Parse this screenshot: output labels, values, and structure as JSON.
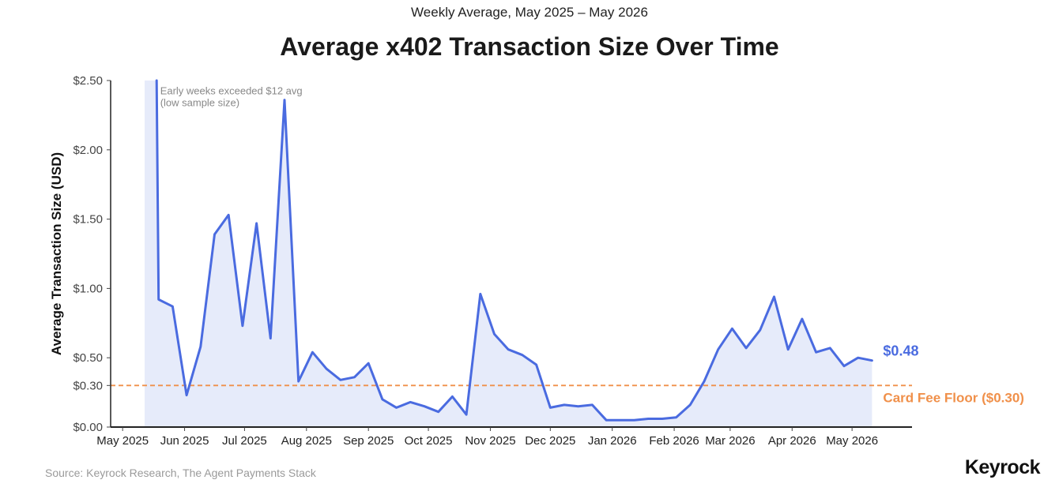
{
  "chart_data": {
    "type": "area",
    "subtitle": "Weekly Average, May 2025 – May 2026",
    "title": "Average x402 Transaction Size Over Time",
    "ylabel": "Average Transaction Size (USD)",
    "xlabel": "",
    "ylim": [
      0,
      2.5
    ],
    "y_ticks": [
      {
        "value": 0.0,
        "label": "$0.00"
      },
      {
        "value": 0.3,
        "label": "$0.30"
      },
      {
        "value": 0.5,
        "label": "$0.50"
      },
      {
        "value": 1.0,
        "label": "$1.00"
      },
      {
        "value": 1.5,
        "label": "$1.50"
      },
      {
        "value": 2.0,
        "label": "$2.00"
      },
      {
        "value": 2.5,
        "label": "$2.50"
      }
    ],
    "x_ticks": [
      {
        "date": "2025-05-01",
        "label": "May 2025"
      },
      {
        "date": "2025-06-01",
        "label": "Jun 2025"
      },
      {
        "date": "2025-07-01",
        "label": "Jul 2025"
      },
      {
        "date": "2025-08-01",
        "label": "Aug 2025"
      },
      {
        "date": "2025-09-01",
        "label": "Sep 2025"
      },
      {
        "date": "2025-10-01",
        "label": "Oct 2025"
      },
      {
        "date": "2025-11-01",
        "label": "Nov 2025"
      },
      {
        "date": "2025-12-01",
        "label": "Dec 2025"
      },
      {
        "date": "2026-01-01",
        "label": "Jan 2026"
      },
      {
        "date": "2026-02-01",
        "label": "Feb 2026"
      },
      {
        "date": "2026-03-01",
        "label": "Mar 2026"
      },
      {
        "date": "2026-04-01",
        "label": "Apr 2026"
      },
      {
        "date": "2026-05-01",
        "label": "May 2026"
      }
    ],
    "xlim": [
      "2025-04-25",
      "2026-05-31"
    ],
    "series": [
      {
        "color": "#4a6be0",
        "fill": "#e6ebfa",
        "points": [
          {
            "x": "2025-05-12",
            "y": 2.5
          },
          {
            "x": "2025-05-18",
            "y": 2.5
          },
          {
            "x": "2025-05-19",
            "y": 0.92
          },
          {
            "x": "2025-05-26",
            "y": 0.87
          },
          {
            "x": "2025-06-02",
            "y": 0.23
          },
          {
            "x": "2025-06-09",
            "y": 0.58
          },
          {
            "x": "2025-06-16",
            "y": 1.39
          },
          {
            "x": "2025-06-23",
            "y": 1.53
          },
          {
            "x": "2025-06-30",
            "y": 0.73
          },
          {
            "x": "2025-07-07",
            "y": 1.47
          },
          {
            "x": "2025-07-14",
            "y": 0.64
          },
          {
            "x": "2025-07-21",
            "y": 2.36
          },
          {
            "x": "2025-07-28",
            "y": 0.33
          },
          {
            "x": "2025-08-04",
            "y": 0.54
          },
          {
            "x": "2025-08-11",
            "y": 0.42
          },
          {
            "x": "2025-08-18",
            "y": 0.34
          },
          {
            "x": "2025-08-25",
            "y": 0.36
          },
          {
            "x": "2025-09-01",
            "y": 0.46
          },
          {
            "x": "2025-09-08",
            "y": 0.2
          },
          {
            "x": "2025-09-15",
            "y": 0.14
          },
          {
            "x": "2025-09-22",
            "y": 0.18
          },
          {
            "x": "2025-09-29",
            "y": 0.15
          },
          {
            "x": "2025-10-06",
            "y": 0.11
          },
          {
            "x": "2025-10-13",
            "y": 0.22
          },
          {
            "x": "2025-10-20",
            "y": 0.09
          },
          {
            "x": "2025-10-27",
            "y": 0.96
          },
          {
            "x": "2025-11-03",
            "y": 0.67
          },
          {
            "x": "2025-11-10",
            "y": 0.56
          },
          {
            "x": "2025-11-17",
            "y": 0.52
          },
          {
            "x": "2025-11-24",
            "y": 0.45
          },
          {
            "x": "2025-12-01",
            "y": 0.14
          },
          {
            "x": "2025-12-08",
            "y": 0.16
          },
          {
            "x": "2025-12-15",
            "y": 0.15
          },
          {
            "x": "2025-12-22",
            "y": 0.16
          },
          {
            "x": "2025-12-29",
            "y": 0.05
          },
          {
            "x": "2026-01-05",
            "y": 0.05
          },
          {
            "x": "2026-01-12",
            "y": 0.05
          },
          {
            "x": "2026-01-19",
            "y": 0.06
          },
          {
            "x": "2026-01-26",
            "y": 0.06
          },
          {
            "x": "2026-02-02",
            "y": 0.07
          },
          {
            "x": "2026-02-09",
            "y": 0.16
          },
          {
            "x": "2026-02-16",
            "y": 0.33
          },
          {
            "x": "2026-02-23",
            "y": 0.56
          },
          {
            "x": "2026-03-02",
            "y": 0.71
          },
          {
            "x": "2026-03-09",
            "y": 0.57
          },
          {
            "x": "2026-03-16",
            "y": 0.7
          },
          {
            "x": "2026-03-23",
            "y": 0.94
          },
          {
            "x": "2026-03-30",
            "y": 0.56
          },
          {
            "x": "2026-04-06",
            "y": 0.78
          },
          {
            "x": "2026-04-13",
            "y": 0.54
          },
          {
            "x": "2026-04-20",
            "y": 0.57
          },
          {
            "x": "2026-04-27",
            "y": 0.44
          },
          {
            "x": "2026-05-04",
            "y": 0.5
          },
          {
            "x": "2026-05-11",
            "y": 0.48
          }
        ]
      }
    ],
    "end_label": "$0.48",
    "reference_line": {
      "value": 0.3,
      "label": "Card Fee Floor ($0.30)",
      "color": "#f0904a",
      "style": "dashed"
    },
    "annotation": {
      "lines": [
        "Early weeks exceeded $12 avg",
        "(low sample size)"
      ],
      "x": "2025-05-19",
      "y": 2.4
    },
    "grid": false,
    "legend": "none"
  },
  "footer": {
    "source": "Source: Keyrock Research, The Agent Payments Stack",
    "logo": "Keyrock"
  }
}
